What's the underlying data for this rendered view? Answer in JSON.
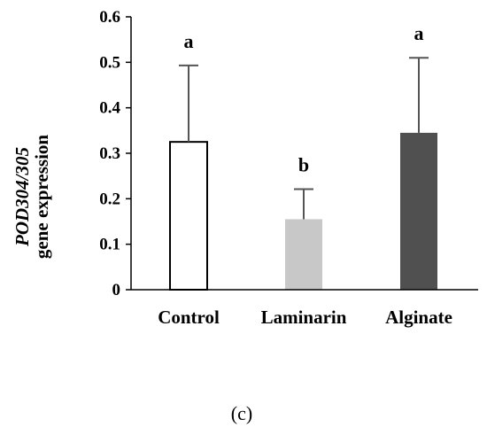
{
  "chart_data": {
    "type": "bar",
    "categories": [
      "Control",
      "Laminarin",
      "Alginate"
    ],
    "values": [
      0.325,
      0.155,
      0.345
    ],
    "errors": [
      0.168,
      0.066,
      0.165
    ],
    "significance": [
      "a",
      "b",
      "a"
    ],
    "colors": [
      "#ffffff",
      "#c8c8c8",
      "#505050"
    ],
    "ylabel_line1": "POD304/305",
    "ylabel_line2": "gene expression",
    "ylim": [
      0,
      0.6
    ],
    "yticks": [
      "0",
      "0.1",
      "0.2",
      "0.3",
      "0.4",
      "0.5",
      "0.6"
    ],
    "grid": false,
    "panel_label": "(c)"
  }
}
